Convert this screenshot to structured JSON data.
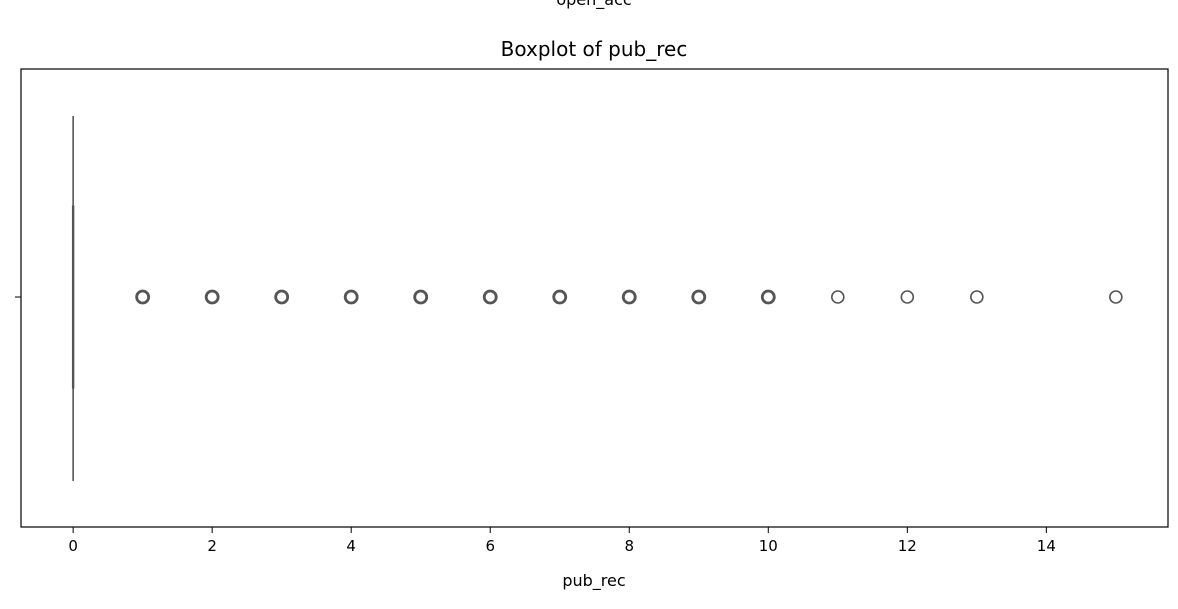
{
  "header_fragment": "open_acc",
  "chart_data": {
    "type": "boxplot",
    "title": "Boxplot of pub_rec",
    "xlabel": "pub_rec",
    "ylabel": "",
    "orientation": "horizontal",
    "xlim": [
      -0.75,
      15.75
    ],
    "xticks": [
      0,
      2,
      4,
      6,
      8,
      10,
      12,
      14
    ],
    "xtick_labels": [
      "0",
      "2",
      "4",
      "6",
      "8",
      "10",
      "12",
      "14"
    ],
    "grid": false,
    "legend": "none",
    "box": {
      "min": 0,
      "q1": 0,
      "median": 0,
      "q3": 0,
      "max": 0
    },
    "outliers": [
      1,
      2,
      3,
      4,
      5,
      6,
      7,
      8,
      9,
      10,
      11,
      12,
      13,
      15
    ],
    "colors": {
      "box_line": "#555555",
      "outlier_edge": "#555555",
      "axis": "#000000"
    }
  }
}
